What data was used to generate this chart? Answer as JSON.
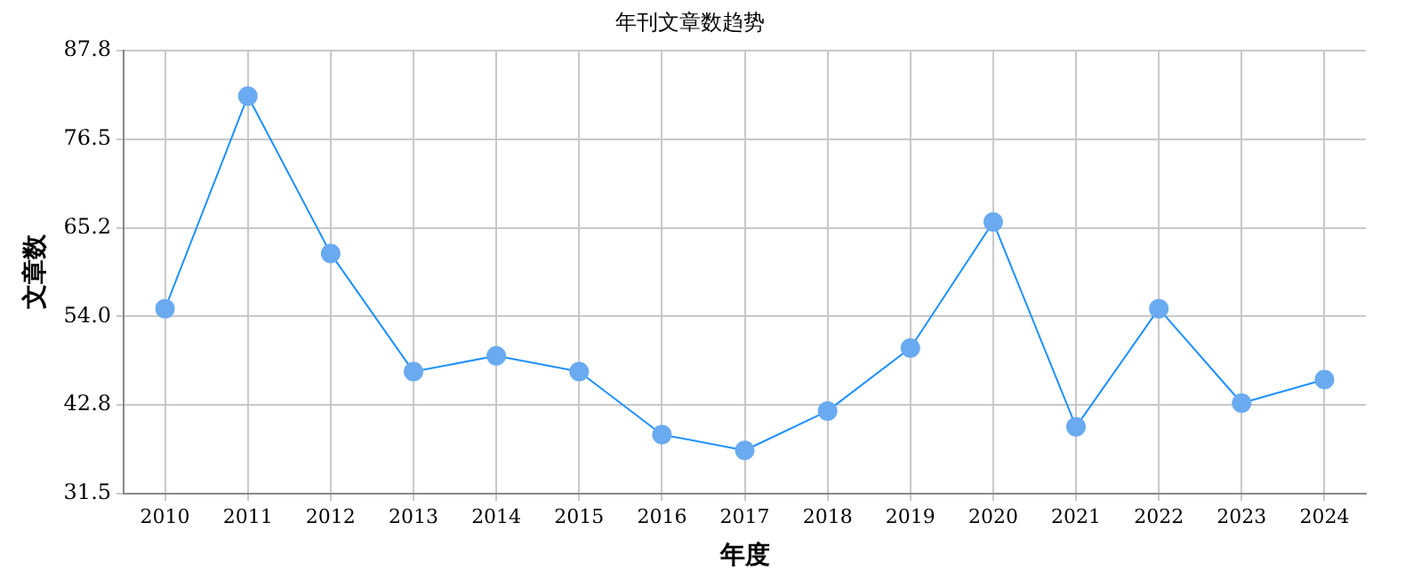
{
  "chart_data": {
    "type": "line",
    "title": "年刊文章数趋势",
    "xlabel": "年度",
    "ylabel": "文章数",
    "categories": [
      "2010",
      "2011",
      "2012",
      "2013",
      "2014",
      "2015",
      "2016",
      "2017",
      "2018",
      "2019",
      "2020",
      "2021",
      "2022",
      "2023",
      "2024"
    ],
    "series": [
      {
        "color": "#1e90ff",
        "values": [
          55,
          82,
          62,
          47,
          49,
          47,
          39,
          37,
          42,
          50,
          66,
          40,
          55,
          43,
          46
        ]
      }
    ],
    "ylim": [
      31.5,
      87.8
    ],
    "yticks": [
      31.5,
      42.8,
      {
        "value": 54,
        "label": "54.0"
      },
      65.2,
      76.5,
      87.8
    ],
    "grid": true,
    "legend": false,
    "marker": "circle",
    "line_style": "solid"
  }
}
